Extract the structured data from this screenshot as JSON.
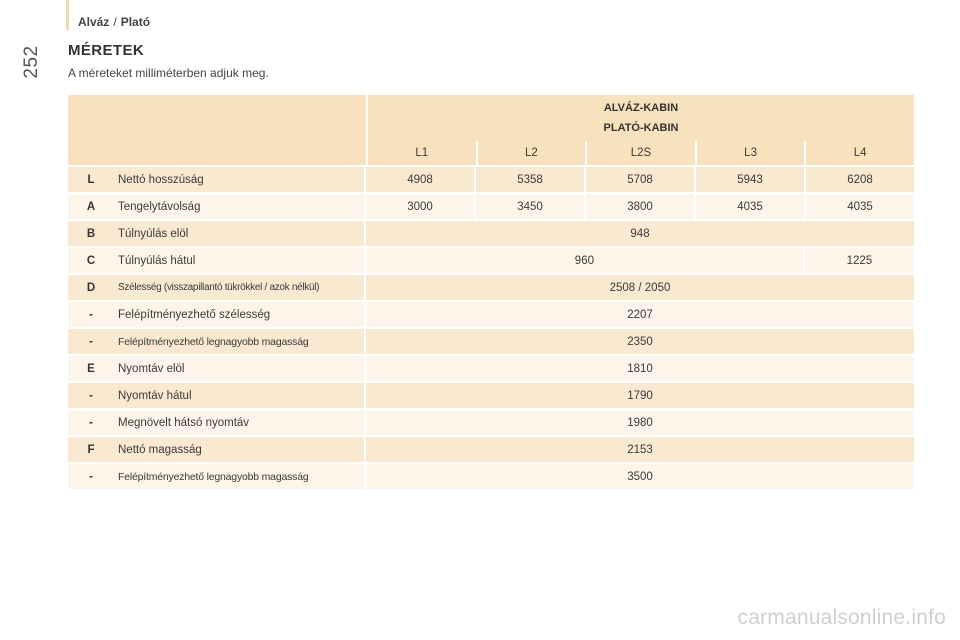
{
  "page": {
    "number": "252",
    "breadcrumb": {
      "part1": "Alváz",
      "separator": "/",
      "part2": "Plató"
    },
    "title": "MÉRETEK",
    "intro": "A méreteket milliméterben adjuk meg."
  },
  "table": {
    "group_line1": "ALVÁZ-KABIN",
    "group_line2": "PLATÓ-KABIN",
    "columns": [
      "L1",
      "L2",
      "L2S",
      "L3",
      "L4"
    ],
    "rows": [
      {
        "key": "L",
        "label": "Nettó hosszúság",
        "values": [
          "4908",
          "5358",
          "5708",
          "5943",
          "6208"
        ]
      },
      {
        "key": "A",
        "label": "Tengelytávolság",
        "values": [
          "3000",
          "3450",
          "3800",
          "4035",
          "4035"
        ]
      },
      {
        "key": "B",
        "label": "Túlnyúlás elöl",
        "value": "948"
      },
      {
        "key": "C",
        "label": "Túlnyúlás hátul",
        "value_span4": "960",
        "value_last": "1225"
      },
      {
        "key": "D",
        "label": "Szélesség (visszapillantó tükrökkel / azok nélkül)",
        "value": "2508 / 2050"
      },
      {
        "key": "-",
        "label": "Felépítményezhető szélesség",
        "value": "2207"
      },
      {
        "key": "-",
        "label": "Felépítményezhető legnagyobb magasság",
        "value": "2350"
      },
      {
        "key": "E",
        "label": "Nyomtáv elöl",
        "value": "1810"
      },
      {
        "key": "-",
        "label": "Nyomtáv hátul",
        "value": "1790"
      },
      {
        "key": "-",
        "label": "Megnövelt hátsó nyomtáv",
        "value": "1980"
      },
      {
        "key": "F",
        "label": "Nettó magasság",
        "value": "2153"
      },
      {
        "key": "-",
        "label": "Felépítményezhető legnagyobb magasság",
        "value": "3500"
      }
    ]
  },
  "watermark": "carmanualsonline.info"
}
